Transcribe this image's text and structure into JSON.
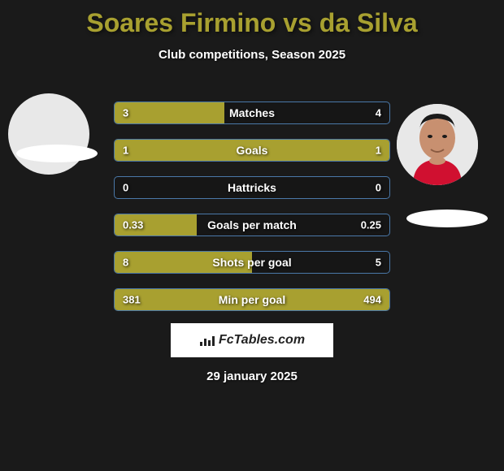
{
  "title": "Soares Firmino vs da Silva",
  "subtitle": "Club competitions, Season 2025",
  "date": "29 january 2025",
  "branding": "FcTables.com",
  "colors": {
    "background": "#1a1a1a",
    "accent": "#a8a030",
    "border": "#4a78a8",
    "text": "#ffffff",
    "avatar_bg": "#e8e8e8"
  },
  "player_left": {
    "name": "Soares Firmino",
    "has_photo": false
  },
  "player_right": {
    "name": "da Silva",
    "has_photo": true
  },
  "stats": [
    {
      "label": "Matches",
      "left_value": "3",
      "right_value": "4",
      "left_pct": 40,
      "right_pct": 0
    },
    {
      "label": "Goals",
      "left_value": "1",
      "right_value": "1",
      "left_pct": 50,
      "right_pct": 50
    },
    {
      "label": "Hattricks",
      "left_value": "0",
      "right_value": "0",
      "left_pct": 0,
      "right_pct": 0
    },
    {
      "label": "Goals per match",
      "left_value": "0.33",
      "right_value": "0.25",
      "left_pct": 30,
      "right_pct": 0
    },
    {
      "label": "Shots per goal",
      "left_value": "8",
      "right_value": "5",
      "left_pct": 50,
      "right_pct": 0
    },
    {
      "label": "Min per goal",
      "left_value": "381",
      "right_value": "494",
      "left_pct": 50,
      "right_pct": 50
    }
  ]
}
